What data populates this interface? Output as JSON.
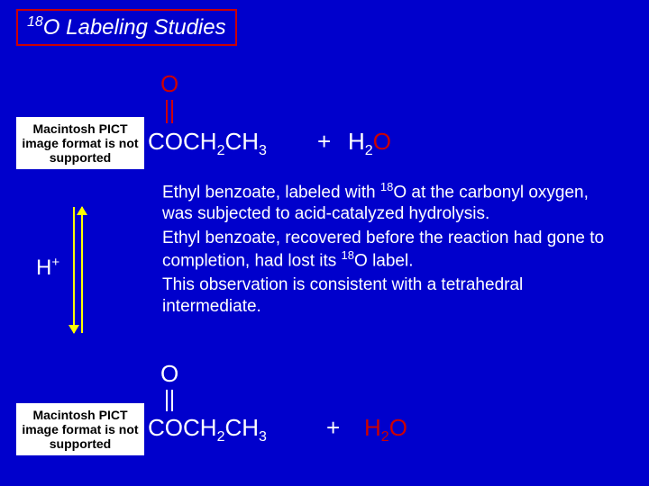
{
  "title": {
    "prefix_sup": "18",
    "text": "O Labeling Studies"
  },
  "carbonyl_top": {
    "oxygen": "O"
  },
  "pict_placeholder": "Macintosh PICT image format is not supported",
  "formula1": {
    "coch2ch3_html": "COCH<sub>2</sub>CH<sub>3</sub>",
    "plus": "+",
    "h2o_prefix": "H",
    "h2o_sub": "2",
    "h2o_o": "O"
  },
  "hplus": {
    "h": "H",
    "sup": "+"
  },
  "body": {
    "p1_html": "Ethyl benzoate, labeled with <sup>18</sup>O at the carbonyl oxygen, was subjected to acid-catalyzed hydrolysis.",
    "p2_html": "Ethyl benzoate, recovered before the reaction had gone to completion, had lost its <sup>18</sup>O label.",
    "p3_html": "This observation is consistent with a tetrahedral intermediate."
  },
  "carbonyl_bot": {
    "oxygen": "O"
  },
  "formula2": {
    "coch2ch3_html": "COCH<sub>2</sub>CH<sub>3</sub>",
    "plus": "+",
    "h2o_html": "H<sub>2</sub>O"
  },
  "colors": {
    "background": "#0000cc",
    "title_border": "#cc0000",
    "red_oxygen": "#cc0000",
    "text": "#ffffff",
    "arrows": "#ffff00"
  }
}
